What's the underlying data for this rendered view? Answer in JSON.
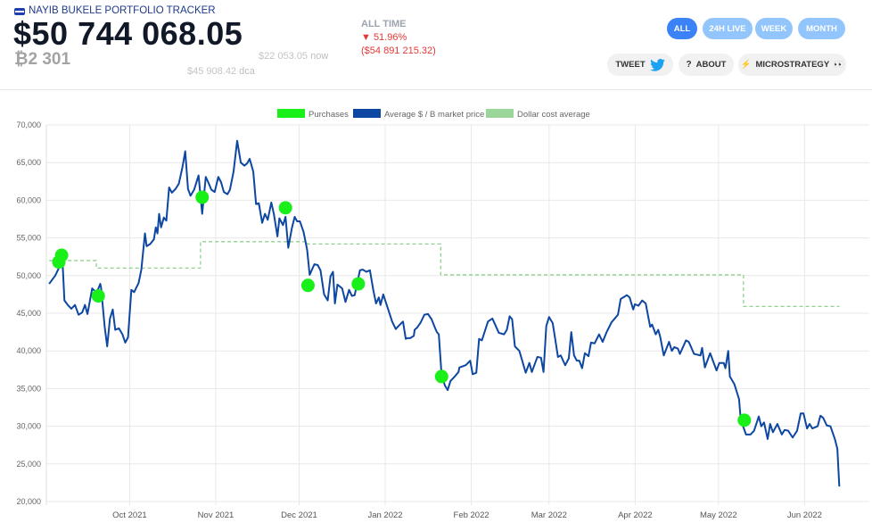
{
  "header": {
    "title": "NAYIB BUKELE PORTFOLIO TRACKER",
    "portfolio_value": "$50 744 068.05",
    "btc_holdings": "₿2 301",
    "price_now": "$22 053.05",
    "price_now_label": "now",
    "price_dca": "$45 908.42",
    "price_dca_label": "dca",
    "all_time_label": "ALL TIME",
    "all_time_change": "▼ 51.96%",
    "all_time_loss": "($54 891 215.32)"
  },
  "range_buttons": [
    {
      "label": "ALL",
      "active": true
    },
    {
      "label": "24H LIVE",
      "active": false
    },
    {
      "label": "WEEK",
      "active": false
    },
    {
      "label": "MONTH",
      "active": false
    }
  ],
  "actions": {
    "tweet": "TWEET",
    "about": "ABOUT",
    "microstrategy": "MICROSTRATEGY"
  },
  "colors": {
    "accent": "#3b82f6",
    "accent_light": "#93c5fd",
    "line": "#0d47a1",
    "purchase": "#19f019",
    "dca": "#8fd18f",
    "loss": "#e53935"
  },
  "chart_data": {
    "type": "line",
    "x_unit": "days since 2021-09-01",
    "ylim": [
      20000,
      70000
    ],
    "xlim": [
      0,
      297
    ],
    "y_ticks": [
      20000,
      25000,
      30000,
      35000,
      40000,
      45000,
      50000,
      55000,
      60000,
      65000,
      70000
    ],
    "y_tick_labels": [
      "20,000",
      "25,000",
      "30,000",
      "35,000",
      "40,000",
      "45,000",
      "50,000",
      "55,000",
      "60,000",
      "65,000",
      "70,000"
    ],
    "x_ticks": [
      {
        "day": 30,
        "label": "Oct 2021"
      },
      {
        "day": 61,
        "label": "Nov 2021"
      },
      {
        "day": 91,
        "label": "Dec 2021"
      },
      {
        "day": 122,
        "label": "Jan 2022"
      },
      {
        "day": 153,
        "label": "Feb 2022"
      },
      {
        "day": 181,
        "label": "Mar 2022"
      },
      {
        "day": 212,
        "label": "Apr 2022"
      },
      {
        "day": 242,
        "label": "May 2022"
      },
      {
        "day": 273,
        "label": "Jun 2022"
      }
    ],
    "legend": [
      "Purchases",
      "Average $ / B market price",
      "Dollar cost average"
    ],
    "legend_position": "top-center",
    "grid": true,
    "series": [
      {
        "name": "Average $ / B market price",
        "points": [
          [
            1.0,
            48.9
          ],
          [
            3.2,
            50.0
          ],
          [
            4.5,
            51.0
          ],
          [
            5.8,
            52.0
          ],
          [
            6.5,
            46.7
          ],
          [
            7.7,
            46.1
          ],
          [
            9.0,
            45.6
          ],
          [
            10.3,
            46.1
          ],
          [
            11.6,
            44.8
          ],
          [
            12.9,
            45.1
          ],
          [
            13.9,
            46.1
          ],
          [
            14.8,
            44.9
          ],
          [
            16.5,
            48.3
          ],
          [
            18.1,
            47.7
          ],
          [
            19.4,
            48.9
          ],
          [
            19.7,
            48.4
          ],
          [
            21.0,
            43.2
          ],
          [
            21.9,
            40.6
          ],
          [
            22.9,
            44.3
          ],
          [
            23.9,
            45.5
          ],
          [
            24.8,
            42.8
          ],
          [
            26.1,
            43.0
          ],
          [
            27.4,
            42.2
          ],
          [
            28.4,
            41.1
          ],
          [
            29.4,
            41.8
          ],
          [
            30.6,
            48.1
          ],
          [
            31.6,
            47.8
          ],
          [
            33.2,
            49.0
          ],
          [
            34.2,
            50.8
          ],
          [
            35.5,
            55.6
          ],
          [
            36.1,
            53.9
          ],
          [
            37.4,
            54.2
          ],
          [
            38.7,
            54.8
          ],
          [
            39.4,
            56.4
          ],
          [
            40.0,
            55.6
          ],
          [
            40.6,
            58.2
          ],
          [
            41.3,
            56.4
          ],
          [
            42.3,
            57.7
          ],
          [
            43.2,
            57.3
          ],
          [
            44.2,
            61.7
          ],
          [
            45.2,
            61.0
          ],
          [
            46.5,
            61.5
          ],
          [
            47.7,
            62.2
          ],
          [
            49.0,
            64.4
          ],
          [
            50.0,
            66.5
          ],
          [
            51.0,
            61.5
          ],
          [
            51.9,
            60.6
          ],
          [
            53.2,
            61.4
          ],
          [
            54.8,
            63.3
          ],
          [
            56.1,
            58.2
          ],
          [
            57.4,
            63.1
          ],
          [
            58.4,
            62.3
          ],
          [
            59.4,
            61.4
          ],
          [
            60.6,
            61.1
          ],
          [
            61.9,
            63.1
          ],
          [
            62.9,
            62.4
          ],
          [
            63.9,
            61.1
          ],
          [
            65.2,
            60.8
          ],
          [
            66.1,
            61.4
          ],
          [
            67.4,
            63.8
          ],
          [
            68.7,
            67.9
          ],
          [
            70.0,
            65.0
          ],
          [
            71.3,
            64.6
          ],
          [
            72.3,
            64.9
          ],
          [
            73.2,
            65.5
          ],
          [
            74.5,
            63.8
          ],
          [
            75.5,
            59.5
          ],
          [
            76.5,
            59.6
          ],
          [
            77.7,
            57.0
          ],
          [
            78.7,
            58.2
          ],
          [
            79.7,
            57.4
          ],
          [
            81.0,
            59.7
          ],
          [
            81.9,
            58.2
          ],
          [
            83.2,
            55.2
          ],
          [
            83.9,
            57.6
          ],
          [
            85.2,
            56.7
          ],
          [
            86.1,
            57.8
          ],
          [
            87.1,
            53.7
          ],
          [
            88.4,
            56.3
          ],
          [
            89.4,
            57.8
          ],
          [
            90.3,
            57.2
          ],
          [
            91.3,
            57.2
          ],
          [
            92.6,
            55.8
          ],
          [
            93.9,
            53.4
          ],
          [
            94.8,
            50.1
          ],
          [
            96.5,
            51.5
          ],
          [
            97.7,
            51.4
          ],
          [
            98.7,
            50.7
          ],
          [
            100.0,
            47.5
          ],
          [
            101.3,
            46.7
          ],
          [
            102.3,
            49.9
          ],
          [
            103.2,
            50.5
          ],
          [
            103.9,
            46.3
          ],
          [
            104.8,
            48.8
          ],
          [
            106.5,
            48.3
          ],
          [
            107.7,
            46.5
          ],
          [
            109.0,
            48.1
          ],
          [
            110.0,
            47.3
          ],
          [
            111.0,
            47.4
          ],
          [
            112.9,
            50.7
          ],
          [
            113.9,
            50.8
          ],
          [
            115.2,
            50.5
          ],
          [
            116.5,
            50.7
          ],
          [
            117.7,
            48.1
          ],
          [
            118.7,
            46.3
          ],
          [
            119.7,
            47.1
          ],
          [
            120.3,
            46.1
          ],
          [
            121.3,
            47.5
          ],
          [
            122.9,
            45.7
          ],
          [
            124.5,
            43.9
          ],
          [
            125.8,
            42.9
          ],
          [
            126.8,
            43.3
          ],
          [
            128.4,
            43.9
          ],
          [
            129.4,
            41.6
          ],
          [
            130.0,
            41.7
          ],
          [
            131.0,
            41.7
          ],
          [
            132.3,
            42.0
          ],
          [
            132.6,
            42.8
          ],
          [
            133.5,
            43.1
          ],
          [
            134.8,
            43.8
          ],
          [
            136.1,
            44.8
          ],
          [
            137.4,
            44.9
          ],
          [
            138.7,
            44.2
          ],
          [
            140.0,
            43.0
          ],
          [
            140.6,
            42.5
          ],
          [
            141.3,
            42.2
          ],
          [
            142.3,
            36.8
          ],
          [
            143.5,
            35.4
          ],
          [
            144.5,
            34.8
          ],
          [
            145.5,
            36.0
          ],
          [
            146.8,
            36.5
          ],
          [
            148.4,
            37.2
          ],
          [
            148.7,
            37.8
          ],
          [
            151.0,
            38.1
          ],
          [
            152.6,
            38.7
          ],
          [
            153.5,
            36.9
          ],
          [
            154.8,
            37.1
          ],
          [
            155.8,
            41.6
          ],
          [
            156.8,
            41.4
          ],
          [
            159.0,
            43.9
          ],
          [
            160.6,
            44.3
          ],
          [
            162.9,
            42.4
          ],
          [
            164.8,
            42.2
          ],
          [
            165.8,
            42.8
          ],
          [
            166.8,
            44.6
          ],
          [
            167.7,
            44.2
          ],
          [
            168.7,
            40.6
          ],
          [
            170.3,
            40.0
          ],
          [
            172.6,
            37.1
          ],
          [
            173.9,
            38.4
          ],
          [
            174.8,
            37.2
          ],
          [
            176.8,
            39.2
          ],
          [
            178.1,
            39.1
          ],
          [
            179.0,
            37.2
          ],
          [
            180.0,
            43.3
          ],
          [
            181.0,
            44.5
          ],
          [
            182.3,
            43.7
          ],
          [
            183.2,
            41.6
          ],
          [
            184.2,
            39.2
          ],
          [
            185.2,
            39.4
          ],
          [
            186.8,
            38.1
          ],
          [
            188.1,
            39.0
          ],
          [
            189.0,
            42.5
          ],
          [
            190.0,
            39.4
          ],
          [
            191.0,
            38.7
          ],
          [
            191.9,
            38.7
          ],
          [
            192.9,
            37.7
          ],
          [
            193.9,
            39.7
          ],
          [
            195.2,
            39.3
          ],
          [
            196.1,
            41.1
          ],
          [
            197.4,
            41.0
          ],
          [
            199.0,
            42.2
          ],
          [
            200.3,
            41.2
          ],
          [
            201.6,
            42.4
          ],
          [
            203.5,
            43.8
          ],
          [
            205.8,
            44.8
          ],
          [
            206.8,
            46.9
          ],
          [
            209.0,
            47.4
          ],
          [
            210.0,
            47.1
          ],
          [
            211.3,
            45.5
          ],
          [
            211.9,
            46.2
          ],
          [
            213.2,
            46.0
          ],
          [
            214.5,
            46.7
          ],
          [
            215.8,
            46.3
          ],
          [
            217.4,
            43.2
          ],
          [
            218.1,
            43.5
          ],
          [
            219.4,
            42.2
          ],
          [
            220.3,
            42.8
          ],
          [
            221.0,
            41.9
          ],
          [
            222.3,
            39.4
          ],
          [
            224.2,
            41.2
          ],
          [
            225.2,
            40.0
          ],
          [
            226.1,
            40.5
          ],
          [
            227.4,
            40.3
          ],
          [
            228.1,
            39.6
          ],
          [
            230.3,
            41.4
          ],
          [
            231.3,
            41.2
          ],
          [
            233.2,
            39.6
          ],
          [
            235.5,
            39.4
          ],
          [
            236.1,
            40.4
          ],
          [
            237.1,
            37.8
          ],
          [
            239.0,
            39.7
          ],
          [
            241.3,
            37.4
          ],
          [
            242.3,
            38.4
          ],
          [
            243.9,
            38.4
          ],
          [
            244.5,
            37.7
          ],
          [
            245.5,
            40.0
          ],
          [
            246.1,
            36.6
          ],
          [
            247.7,
            35.6
          ],
          [
            249.4,
            33.6
          ],
          [
            250.0,
            30.9
          ],
          [
            251.9,
            28.9
          ],
          [
            253.5,
            28.9
          ],
          [
            254.8,
            29.4
          ],
          [
            256.5,
            31.3
          ],
          [
            257.4,
            30.0
          ],
          [
            258.4,
            30.5
          ],
          [
            259.7,
            28.3
          ],
          [
            260.6,
            30.3
          ],
          [
            261.6,
            29.2
          ],
          [
            263.2,
            30.3
          ],
          [
            264.8,
            28.9
          ],
          [
            265.8,
            29.5
          ],
          [
            267.1,
            29.4
          ],
          [
            268.7,
            28.5
          ],
          [
            270.3,
            29.4
          ],
          [
            271.6,
            31.7
          ],
          [
            272.6,
            31.7
          ],
          [
            273.9,
            29.7
          ],
          [
            274.8,
            30.3
          ],
          [
            275.8,
            29.7
          ],
          [
            277.7,
            30.0
          ],
          [
            278.7,
            31.4
          ],
          [
            279.7,
            31.1
          ],
          [
            281.0,
            30.1
          ],
          [
            282.3,
            30.0
          ],
          [
            283.9,
            28.3
          ],
          [
            284.8,
            27.0
          ],
          [
            285.5,
            22.0
          ]
        ]
      },
      {
        "name": "Purchases",
        "points": [
          [
            4.5,
            51.8
          ],
          [
            5.5,
            52.7
          ],
          [
            18.7,
            47.3
          ],
          [
            56.1,
            60.4
          ],
          [
            86.1,
            59.0
          ],
          [
            94.2,
            48.7
          ],
          [
            112.3,
            48.9
          ],
          [
            142.3,
            36.6
          ],
          [
            251.3,
            30.8
          ]
        ]
      },
      {
        "name": "Dollar cost average",
        "steps": [
          [
            1,
            52.0
          ],
          [
            18,
            51.0
          ],
          [
            55.5,
            54.5
          ],
          [
            94,
            54.2
          ],
          [
            142,
            50.1
          ],
          [
            251,
            45.9
          ],
          [
            285.5,
            45.9
          ]
        ]
      }
    ],
    "value_unit": "thousands USD"
  }
}
